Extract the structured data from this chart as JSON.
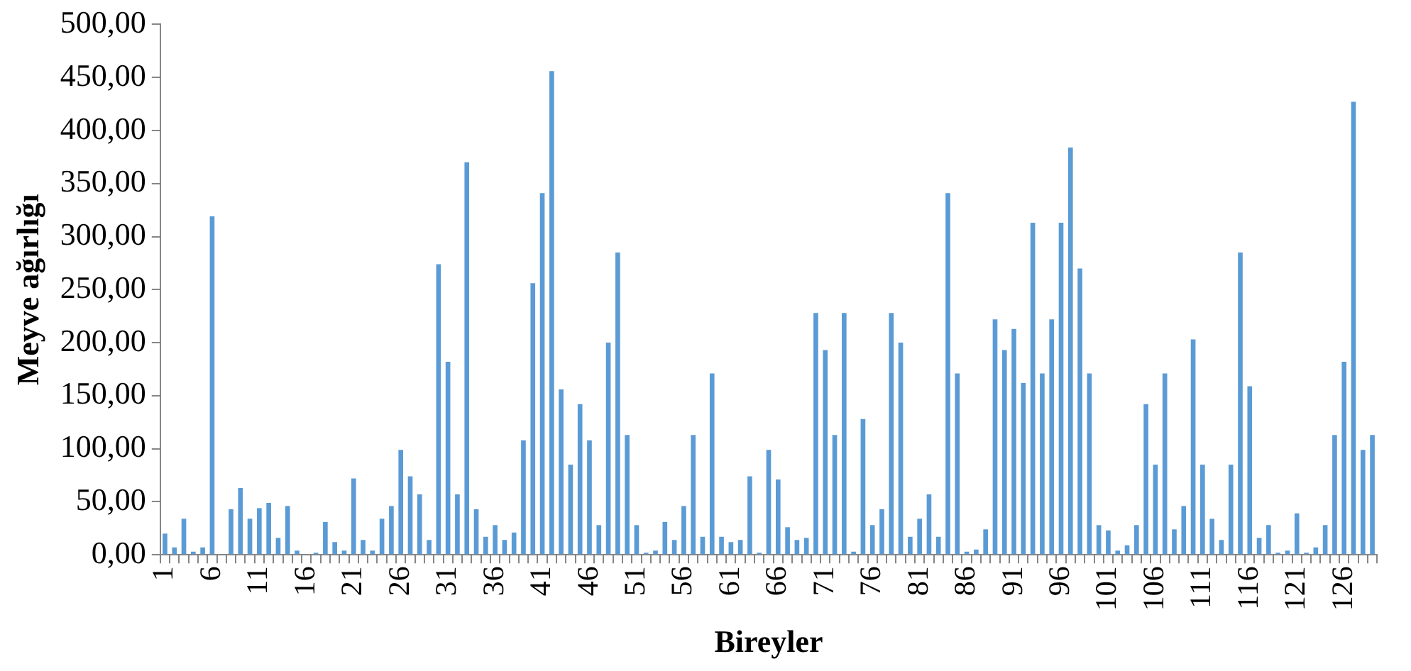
{
  "chart_data": {
    "type": "bar",
    "xlabel": "Bireyler",
    "ylabel": "Meyve ağırlığı",
    "categories": [
      "1",
      null,
      null,
      null,
      null,
      "6",
      null,
      null,
      null,
      null,
      "11",
      null,
      null,
      null,
      null,
      "16",
      null,
      null,
      null,
      null,
      "21",
      null,
      null,
      null,
      null,
      "26",
      null,
      null,
      null,
      null,
      "31",
      null,
      null,
      null,
      null,
      "36",
      null,
      null,
      null,
      null,
      "41",
      null,
      null,
      null,
      null,
      "46",
      null,
      null,
      null,
      null,
      "51",
      null,
      null,
      null,
      null,
      "56",
      null,
      null,
      null,
      null,
      "61",
      null,
      null,
      null,
      null,
      "66",
      null,
      null,
      null,
      null,
      "71",
      null,
      null,
      null,
      null,
      "76",
      null,
      null,
      null,
      null,
      "81",
      null,
      null,
      null,
      null,
      "86",
      null,
      null,
      null,
      null,
      "91",
      null,
      null,
      null,
      null,
      "96",
      null,
      null,
      null,
      null,
      "101",
      null,
      null,
      null,
      null,
      "106",
      null,
      null,
      null,
      null,
      "111",
      null,
      null,
      null,
      null,
      "116",
      null,
      null,
      null,
      null,
      "121",
      null,
      null,
      null,
      null,
      "126",
      null,
      null,
      null
    ],
    "values": [
      20,
      7,
      34,
      3,
      7,
      319,
      0,
      43,
      63,
      34,
      44,
      49,
      16,
      46,
      4,
      0,
      2,
      31,
      12,
      4,
      72,
      14,
      4,
      34,
      46,
      99,
      74,
      57,
      14,
      274,
      182,
      57,
      370,
      43,
      17,
      28,
      14,
      21,
      108,
      256,
      341,
      456,
      156,
      85,
      142,
      108,
      28,
      200,
      285,
      113,
      28,
      2,
      4,
      31,
      14,
      46,
      113,
      17,
      171,
      17,
      12,
      14,
      74,
      2,
      99,
      71,
      26,
      14,
      16,
      228,
      193,
      113,
      228,
      3,
      128,
      28,
      43,
      228,
      200,
      17,
      34,
      57,
      17,
      341,
      171,
      3,
      5,
      24,
      222,
      193,
      213,
      162,
      313,
      171,
      222,
      313,
      384,
      270,
      171,
      28,
      23,
      4,
      9,
      28,
      142,
      85,
      171,
      24,
      46,
      203,
      85,
      34,
      14,
      85,
      285,
      159,
      16,
      28,
      2,
      4,
      39,
      2,
      7,
      28,
      113,
      182,
      427,
      99,
      113
    ],
    "color": "#5b9bd5",
    "ylim": [
      0,
      500
    ],
    "yticks": [
      {
        "value": 0,
        "label": "0,00"
      },
      {
        "value": 50,
        "label": "50,00"
      },
      {
        "value": 100,
        "label": "100,00"
      },
      {
        "value": 150,
        "label": "150,00"
      },
      {
        "value": 200,
        "label": "200,00"
      },
      {
        "value": 250,
        "label": "250,00"
      },
      {
        "value": 300,
        "label": "300,00"
      },
      {
        "value": 350,
        "label": "350,00"
      },
      {
        "value": 400,
        "label": "400,00"
      },
      {
        "value": 450,
        "label": "450,00"
      },
      {
        "value": 500,
        "label": "500,00"
      }
    ]
  }
}
